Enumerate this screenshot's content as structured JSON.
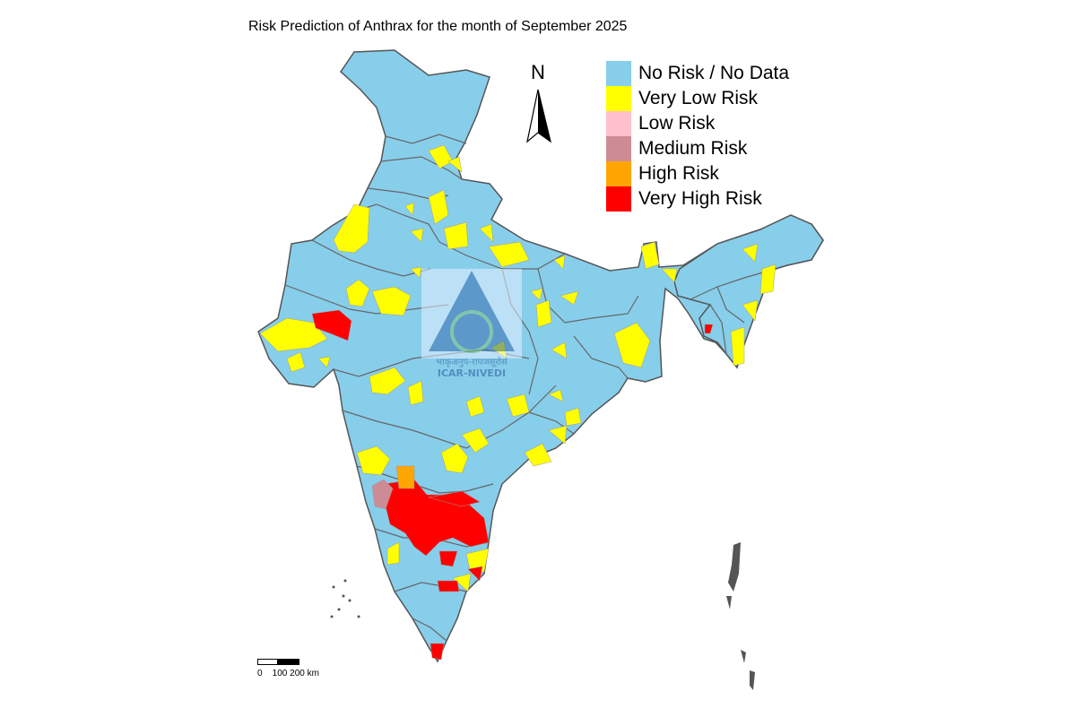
{
  "map": {
    "title": "Risk Prediction of Anthrax for the month of September 2025",
    "north_label": "N",
    "watermark": {
      "line1": "भाकृअनुप-रापजसूरोसं",
      "line2": "ICAR-NIVEDI"
    },
    "scale": {
      "labels": "0    100 200 km"
    },
    "legend": [
      {
        "label": "No Risk / No Data",
        "color": "#87CEEB"
      },
      {
        "label": "Very Low Risk",
        "color": "#FFFF00"
      },
      {
        "label": "Low Risk",
        "color": "#FFC0CB"
      },
      {
        "label": "Medium Risk",
        "color": "#CD8C95"
      },
      {
        "label": "High Risk",
        "color": "#FFA500"
      },
      {
        "label": "Very High Risk",
        "color": "#FF0000"
      }
    ],
    "colors": {
      "boundary": "#555555",
      "base": "#87CEEB"
    }
  }
}
